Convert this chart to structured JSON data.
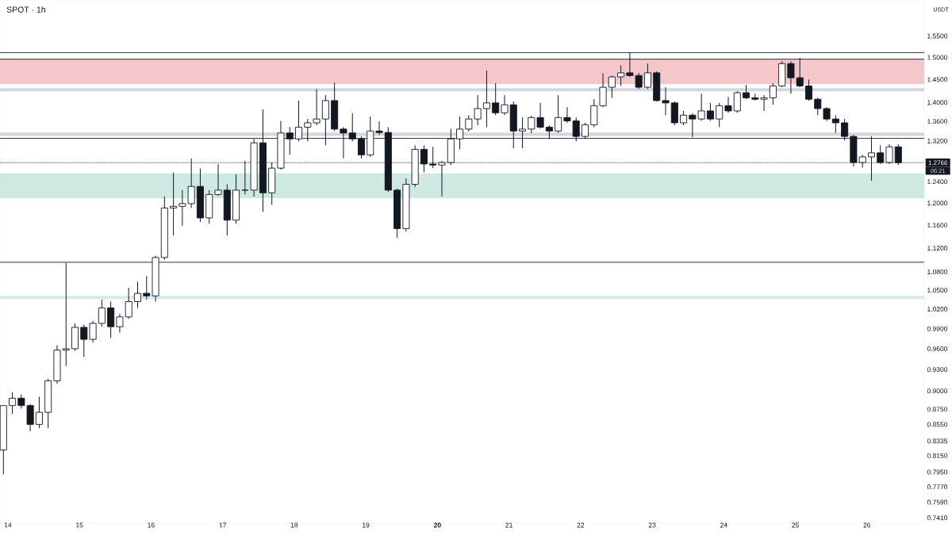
{
  "chart_data": {
    "type": "candlestick",
    "title": "SPOT · 1h",
    "ylabel": "USDT",
    "log": "y",
    "color": "#131722",
    "annotations": [
      "06:21"
    ],
    "xlim": [
      13.89,
      26.8
    ],
    "ylim": [
      0.735,
      1.638
    ],
    "xticks": [
      14,
      15,
      16,
      17,
      18,
      19,
      {
        "value": 20,
        "label": "**20**"
      },
      21,
      22,
      23,
      24,
      25,
      26
    ],
    "yticks": [
      {
        "value": 0.741,
        "label": "0.7410"
      },
      {
        "value": 0.759,
        "label": "0.7590"
      },
      {
        "value": 0.777,
        "label": "0.7770"
      },
      {
        "value": 0.795,
        "label": "0.7950"
      },
      {
        "value": 0.815,
        "label": "0.8150"
      },
      {
        "value": 0.8335,
        "label": "0.8335"
      },
      {
        "value": 0.855,
        "label": "0.8550"
      },
      {
        "value": 0.875,
        "label": "0.8750"
      },
      {
        "value": 0.9,
        "label": "0.9000"
      },
      {
        "value": 0.93,
        "label": "0.9300"
      },
      {
        "value": 0.96,
        "label": "0.9600"
      },
      {
        "value": 0.99,
        "label": "0.9900"
      },
      {
        "value": 1.02,
        "label": "1.0200"
      },
      {
        "value": 1.05,
        "label": "1.0500"
      },
      {
        "value": 1.08,
        "label": "1.0800"
      },
      {
        "value": 1.12,
        "label": "1.1200"
      },
      {
        "value": 1.16,
        "label": "1.1600"
      },
      {
        "value": 1.2,
        "label": "1.2000"
      },
      {
        "value": 1.24,
        "label": "1.2400"
      },
      {
        "value": 1.32,
        "label": "1.3200"
      },
      {
        "value": 1.36,
        "label": "1.3600"
      },
      {
        "value": 1.4,
        "label": "1.4000"
      },
      {
        "value": 1.45,
        "label": "1.4500"
      },
      {
        "value": 1.5,
        "label": "1.5000"
      },
      {
        "value": 1.55,
        "label": "1.5500"
      }
    ],
    "bands": [
      {
        "axis": "y",
        "from": 1.44,
        "to": 1.496,
        "color": "#f4c7cb"
      },
      {
        "axis": "y",
        "from": 1.424,
        "to": 1.431,
        "color": "#d6d6de"
      },
      {
        "axis": "y",
        "from": 1.33,
        "to": 1.337,
        "color": "#d6d6de"
      },
      {
        "axis": "y",
        "from": 1.209,
        "to": 1.256,
        "color": "#cde9e2"
      },
      {
        "axis": "y",
        "from": 1.036,
        "to": 1.041,
        "color": "#d3ebef"
      }
    ],
    "ref_lines": [
      {
        "axis": "y",
        "value": 1.511,
        "color": "#131722"
      },
      {
        "axis": "y",
        "value": 1.496,
        "color": "#131722"
      },
      {
        "axis": "y",
        "value": 1.325,
        "color": "#131722"
      },
      {
        "axis": "y",
        "value": 1.096,
        "color": "#131722"
      },
      {
        "axis": "y",
        "value": 1.2766,
        "label": "1.2766",
        "color": "#131722",
        "line_style": "dotted"
      }
    ],
    "x": [
      13.9375,
      14.0625,
      14.1875,
      14.3125,
      14.4375,
      14.5625,
      14.6875,
      14.8125,
      14.9375,
      15.0625,
      15.1875,
      15.3125,
      15.4375,
      15.5625,
      15.6875,
      15.8125,
      15.9375,
      16.0625,
      16.1875,
      16.3125,
      16.4375,
      16.5625,
      16.6875,
      16.8125,
      16.9375,
      17.0625,
      17.1875,
      17.3125,
      17.4375,
      17.5625,
      17.6875,
      17.8125,
      17.9375,
      18.0625,
      18.1875,
      18.3125,
      18.4375,
      18.5625,
      18.6875,
      18.8125,
      18.9375,
      19.0625,
      19.1875,
      19.3125,
      19.4375,
      19.5625,
      19.6875,
      19.8125,
      19.9375,
      20.0625,
      20.1875,
      20.3125,
      20.4375,
      20.5625,
      20.6875,
      20.8125,
      20.9375,
      21.0625,
      21.1875,
      21.3125,
      21.4375,
      21.5625,
      21.6875,
      21.8125,
      21.9375,
      22.0625,
      22.1875,
      22.3125,
      22.4375,
      22.5625,
      22.6875,
      22.8125,
      22.9375,
      23.0625,
      23.1875,
      23.3125,
      23.4375,
      23.5625,
      23.6875,
      23.8125,
      23.9375,
      24.0625,
      24.1875,
      24.3125,
      24.4375,
      24.5625,
      24.6875,
      24.8125,
      24.9375,
      25.0625,
      25.1875,
      25.3125,
      25.4375,
      25.5625,
      25.6875,
      25.8125,
      25.9375,
      26.0625,
      26.1875,
      26.3125,
      26.4375
    ],
    "ohlc": [
      [
        0.822,
        0.88,
        0.792,
        0.88
      ],
      [
        0.88,
        0.898,
        0.869,
        0.89
      ],
      [
        0.89,
        0.895,
        0.876,
        0.88
      ],
      [
        0.88,
        0.882,
        0.846,
        0.855
      ],
      [
        0.855,
        0.892,
        0.85,
        0.871
      ],
      [
        0.871,
        0.917,
        0.85,
        0.914
      ],
      [
        0.914,
        0.965,
        0.91,
        0.958
      ],
      [
        0.958,
        1.095,
        0.935,
        0.96
      ],
      [
        0.96,
        0.998,
        0.957,
        0.992
      ],
      [
        0.992,
        0.996,
        0.948,
        0.974
      ],
      [
        0.974,
        1.002,
        0.969,
        0.998
      ],
      [
        0.998,
        1.035,
        0.993,
        1.022
      ],
      [
        1.022,
        1.032,
        0.976,
        0.993
      ],
      [
        0.993,
        1.013,
        0.984,
        1.008
      ],
      [
        1.008,
        1.054,
        1.005,
        1.032
      ],
      [
        1.032,
        1.064,
        1.022,
        1.045
      ],
      [
        1.045,
        1.073,
        1.035,
        1.041
      ],
      [
        1.041,
        1.107,
        1.032,
        1.104
      ],
      [
        1.104,
        1.212,
        1.1,
        1.191
      ],
      [
        1.191,
        1.257,
        1.142,
        1.194
      ],
      [
        1.194,
        1.224,
        1.159,
        1.199
      ],
      [
        1.199,
        1.285,
        1.191,
        1.231
      ],
      [
        1.231,
        1.265,
        1.166,
        1.173
      ],
      [
        1.173,
        1.224,
        1.163,
        1.216
      ],
      [
        1.216,
        1.274,
        1.213,
        1.224
      ],
      [
        1.224,
        1.235,
        1.142,
        1.169
      ],
      [
        1.169,
        1.254,
        1.163,
        1.224
      ],
      [
        1.224,
        1.28,
        1.216,
        1.224
      ],
      [
        1.224,
        1.324,
        1.212,
        1.316
      ],
      [
        1.316,
        1.385,
        1.184,
        1.219
      ],
      [
        1.219,
        1.277,
        1.197,
        1.266
      ],
      [
        1.266,
        1.361,
        1.263,
        1.336
      ],
      [
        1.336,
        1.348,
        1.292,
        1.324
      ],
      [
        1.324,
        1.404,
        1.319,
        1.348
      ],
      [
        1.348,
        1.365,
        1.319,
        1.357
      ],
      [
        1.357,
        1.429,
        1.352,
        1.365
      ],
      [
        1.365,
        1.416,
        1.311,
        1.404
      ],
      [
        1.404,
        1.443,
        1.34,
        1.344
      ],
      [
        1.344,
        1.348,
        1.285,
        1.336
      ],
      [
        1.336,
        1.377,
        1.319,
        1.324
      ],
      [
        1.324,
        1.329,
        1.285,
        1.292
      ],
      [
        1.292,
        1.37,
        1.288,
        1.34
      ],
      [
        1.34,
        1.36,
        1.332,
        1.337
      ],
      [
        1.337,
        1.348,
        1.221,
        1.224
      ],
      [
        1.224,
        1.227,
        1.138,
        1.154
      ],
      [
        1.154,
        1.246,
        1.149,
        1.235
      ],
      [
        1.235,
        1.311,
        1.23,
        1.303
      ],
      [
        1.303,
        1.311,
        1.258,
        1.274
      ],
      [
        1.274,
        1.308,
        1.266,
        1.272
      ],
      [
        1.272,
        1.28,
        1.212,
        1.277
      ],
      [
        1.277,
        1.345,
        1.272,
        1.324
      ],
      [
        1.324,
        1.37,
        1.303,
        1.344
      ],
      [
        1.344,
        1.373,
        1.339,
        1.365
      ],
      [
        1.365,
        1.416,
        1.352,
        1.387
      ],
      [
        1.387,
        1.47,
        1.348,
        1.399
      ],
      [
        1.399,
        1.442,
        1.373,
        1.378
      ],
      [
        1.378,
        1.416,
        1.373,
        1.395
      ],
      [
        1.395,
        1.402,
        1.305,
        1.34
      ],
      [
        1.34,
        1.368,
        1.305,
        1.344
      ],
      [
        1.344,
        1.372,
        1.336,
        1.368
      ],
      [
        1.368,
        1.399,
        1.345,
        1.348
      ],
      [
        1.348,
        1.352,
        1.324,
        1.34
      ],
      [
        1.34,
        1.416,
        1.336,
        1.368
      ],
      [
        1.368,
        1.39,
        1.357,
        1.361
      ],
      [
        1.361,
        1.368,
        1.319,
        1.329
      ],
      [
        1.329,
        1.357,
        1.324,
        1.353
      ],
      [
        1.353,
        1.407,
        1.348,
        1.393
      ],
      [
        1.393,
        1.464,
        1.39,
        1.433
      ],
      [
        1.433,
        1.459,
        1.41,
        1.456
      ],
      [
        1.456,
        1.482,
        1.436,
        1.465
      ],
      [
        1.465,
        1.511,
        1.456,
        1.459
      ],
      [
        1.459,
        1.465,
        1.429,
        1.433
      ],
      [
        1.433,
        1.486,
        1.429,
        1.465
      ],
      [
        1.465,
        1.468,
        1.402,
        1.404
      ],
      [
        1.404,
        1.433,
        1.373,
        1.399
      ],
      [
        1.399,
        1.402,
        1.352,
        1.357
      ],
      [
        1.357,
        1.382,
        1.352,
        1.373
      ],
      [
        1.373,
        1.377,
        1.327,
        1.365
      ],
      [
        1.365,
        1.419,
        1.361,
        1.382
      ],
      [
        1.382,
        1.399,
        1.361,
        1.365
      ],
      [
        1.365,
        1.399,
        1.348,
        1.393
      ],
      [
        1.393,
        1.412,
        1.378,
        1.382
      ],
      [
        1.382,
        1.424,
        1.378,
        1.421
      ],
      [
        1.421,
        1.438,
        1.407,
        1.41
      ],
      [
        1.41,
        1.419,
        1.404,
        1.407
      ],
      [
        1.407,
        1.416,
        1.382,
        1.41
      ],
      [
        1.41,
        1.442,
        1.395,
        1.436
      ],
      [
        1.436,
        1.491,
        1.433,
        1.486
      ],
      [
        1.486,
        1.491,
        1.419,
        1.454
      ],
      [
        1.454,
        1.499,
        1.433,
        1.436
      ],
      [
        1.436,
        1.45,
        1.404,
        1.407
      ],
      [
        1.407,
        1.41,
        1.373,
        1.387
      ],
      [
        1.387,
        1.39,
        1.361,
        1.365
      ],
      [
        1.365,
        1.373,
        1.336,
        1.357
      ],
      [
        1.357,
        1.365,
        1.321,
        1.329
      ],
      [
        1.329,
        1.332,
        1.269,
        1.277
      ],
      [
        1.277,
        1.292,
        1.267,
        1.288
      ],
      [
        1.288,
        1.329,
        1.242,
        1.296
      ],
      [
        1.296,
        1.311,
        1.274,
        1.277
      ],
      [
        1.277,
        1.313,
        1.274,
        1.308
      ],
      [
        1.308,
        1.313,
        1.272,
        1.2766
      ]
    ]
  }
}
